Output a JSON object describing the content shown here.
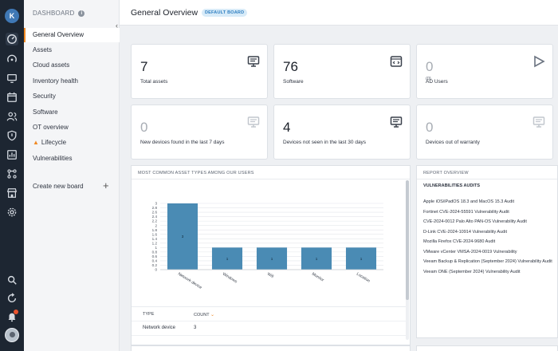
{
  "rail": {
    "avatar_initial": "K",
    "icons": [
      "dashboard-icon",
      "gauge-icon",
      "monitor-icon",
      "calendar-icon",
      "users-icon",
      "shield-icon",
      "report-icon",
      "network-icon",
      "store-icon",
      "gear-icon"
    ],
    "bottom_icons": [
      "search-icon",
      "refresh-icon",
      "bell-icon",
      "user-avatar"
    ]
  },
  "menu": {
    "heading": "DASHBOARD",
    "items": [
      {
        "label": "General Overview"
      },
      {
        "label": "Assets"
      },
      {
        "label": "Cloud assets"
      },
      {
        "label": "Inventory health"
      },
      {
        "label": "Security"
      },
      {
        "label": "Software"
      },
      {
        "label": "OT overview"
      },
      {
        "label": "Lifecycle"
      },
      {
        "label": "Vulnerabilities"
      }
    ],
    "create_label": "Create new board"
  },
  "header": {
    "title": "General Overview",
    "badge": "DEFAULT BOARD"
  },
  "cards": [
    {
      "value": "7",
      "label": "Total assets",
      "icon": "monitor-icon",
      "muted": false
    },
    {
      "value": "76",
      "label": "Software",
      "icon": "code-window-icon",
      "muted": false
    },
    {
      "value": "0",
      "sub": "(0)",
      "label": "AD Users",
      "icon": "play-icon",
      "muted": true
    },
    {
      "value": "0",
      "label": "New devices found in the last 7 days",
      "icon": "monitor-icon",
      "muted": true
    },
    {
      "value": "4",
      "label": "Devices not seen in the last 30 days",
      "icon": "monitor-icon",
      "muted": false
    },
    {
      "value": "0",
      "label": "Devices out of warranty",
      "icon": "monitor-icon",
      "muted": true
    }
  ],
  "asset_types_panel": {
    "title": "MOST COMMON ASSET TYPES AMONG OUR USERS",
    "table": {
      "headers": [
        "TYPE",
        "COUNT"
      ],
      "rows": [
        [
          "Network device",
          "3"
        ]
      ]
    }
  },
  "chart_data": {
    "type": "bar",
    "categories": [
      "Network device",
      "Windows",
      "Wifi",
      "Monitor",
      "Location"
    ],
    "values": [
      3,
      1,
      1,
      1,
      1
    ],
    "ylim": [
      0,
      3
    ],
    "yticks": [
      "0",
      "0.2",
      "0.4",
      "0.6",
      "0.8",
      "1",
      "1.2",
      "1.4",
      "1.6",
      "1.8",
      "2",
      "2.2",
      "2.4",
      "2.6",
      "2.8",
      "3"
    ],
    "grid": true,
    "bar_color": "#4a8bb4"
  },
  "report_panel": {
    "title": "REPORT OVERVIEW",
    "section": "VULNERABILITIES AUDITS",
    "items": [
      "Apple iOS/iPadOS 18.3 and MacOS 15.3 Audit",
      "Fortinet CVE-2024-55591 Vulnerability Audit",
      "CVE-2024-0012 Palo Alto PAN-OS Vulnerability Audit",
      "D-Link CVE-2024-10914 Vulnerability Audit",
      "Mozilla Firefox CVE-2024-9680 Audit",
      "VMware vCenter VMSA-2024-0019 Vulnerability",
      "Veeam Backup & Replication (September 2024) Vulnerability Audit",
      "Veeam ONE (September 2024) Vulnerability Audit"
    ]
  },
  "colors": {
    "accent": "#f08a24",
    "rail_bg": "#1d2632",
    "badge_bg": "#d8ebf8",
    "badge_fg": "#2f7fc1"
  }
}
